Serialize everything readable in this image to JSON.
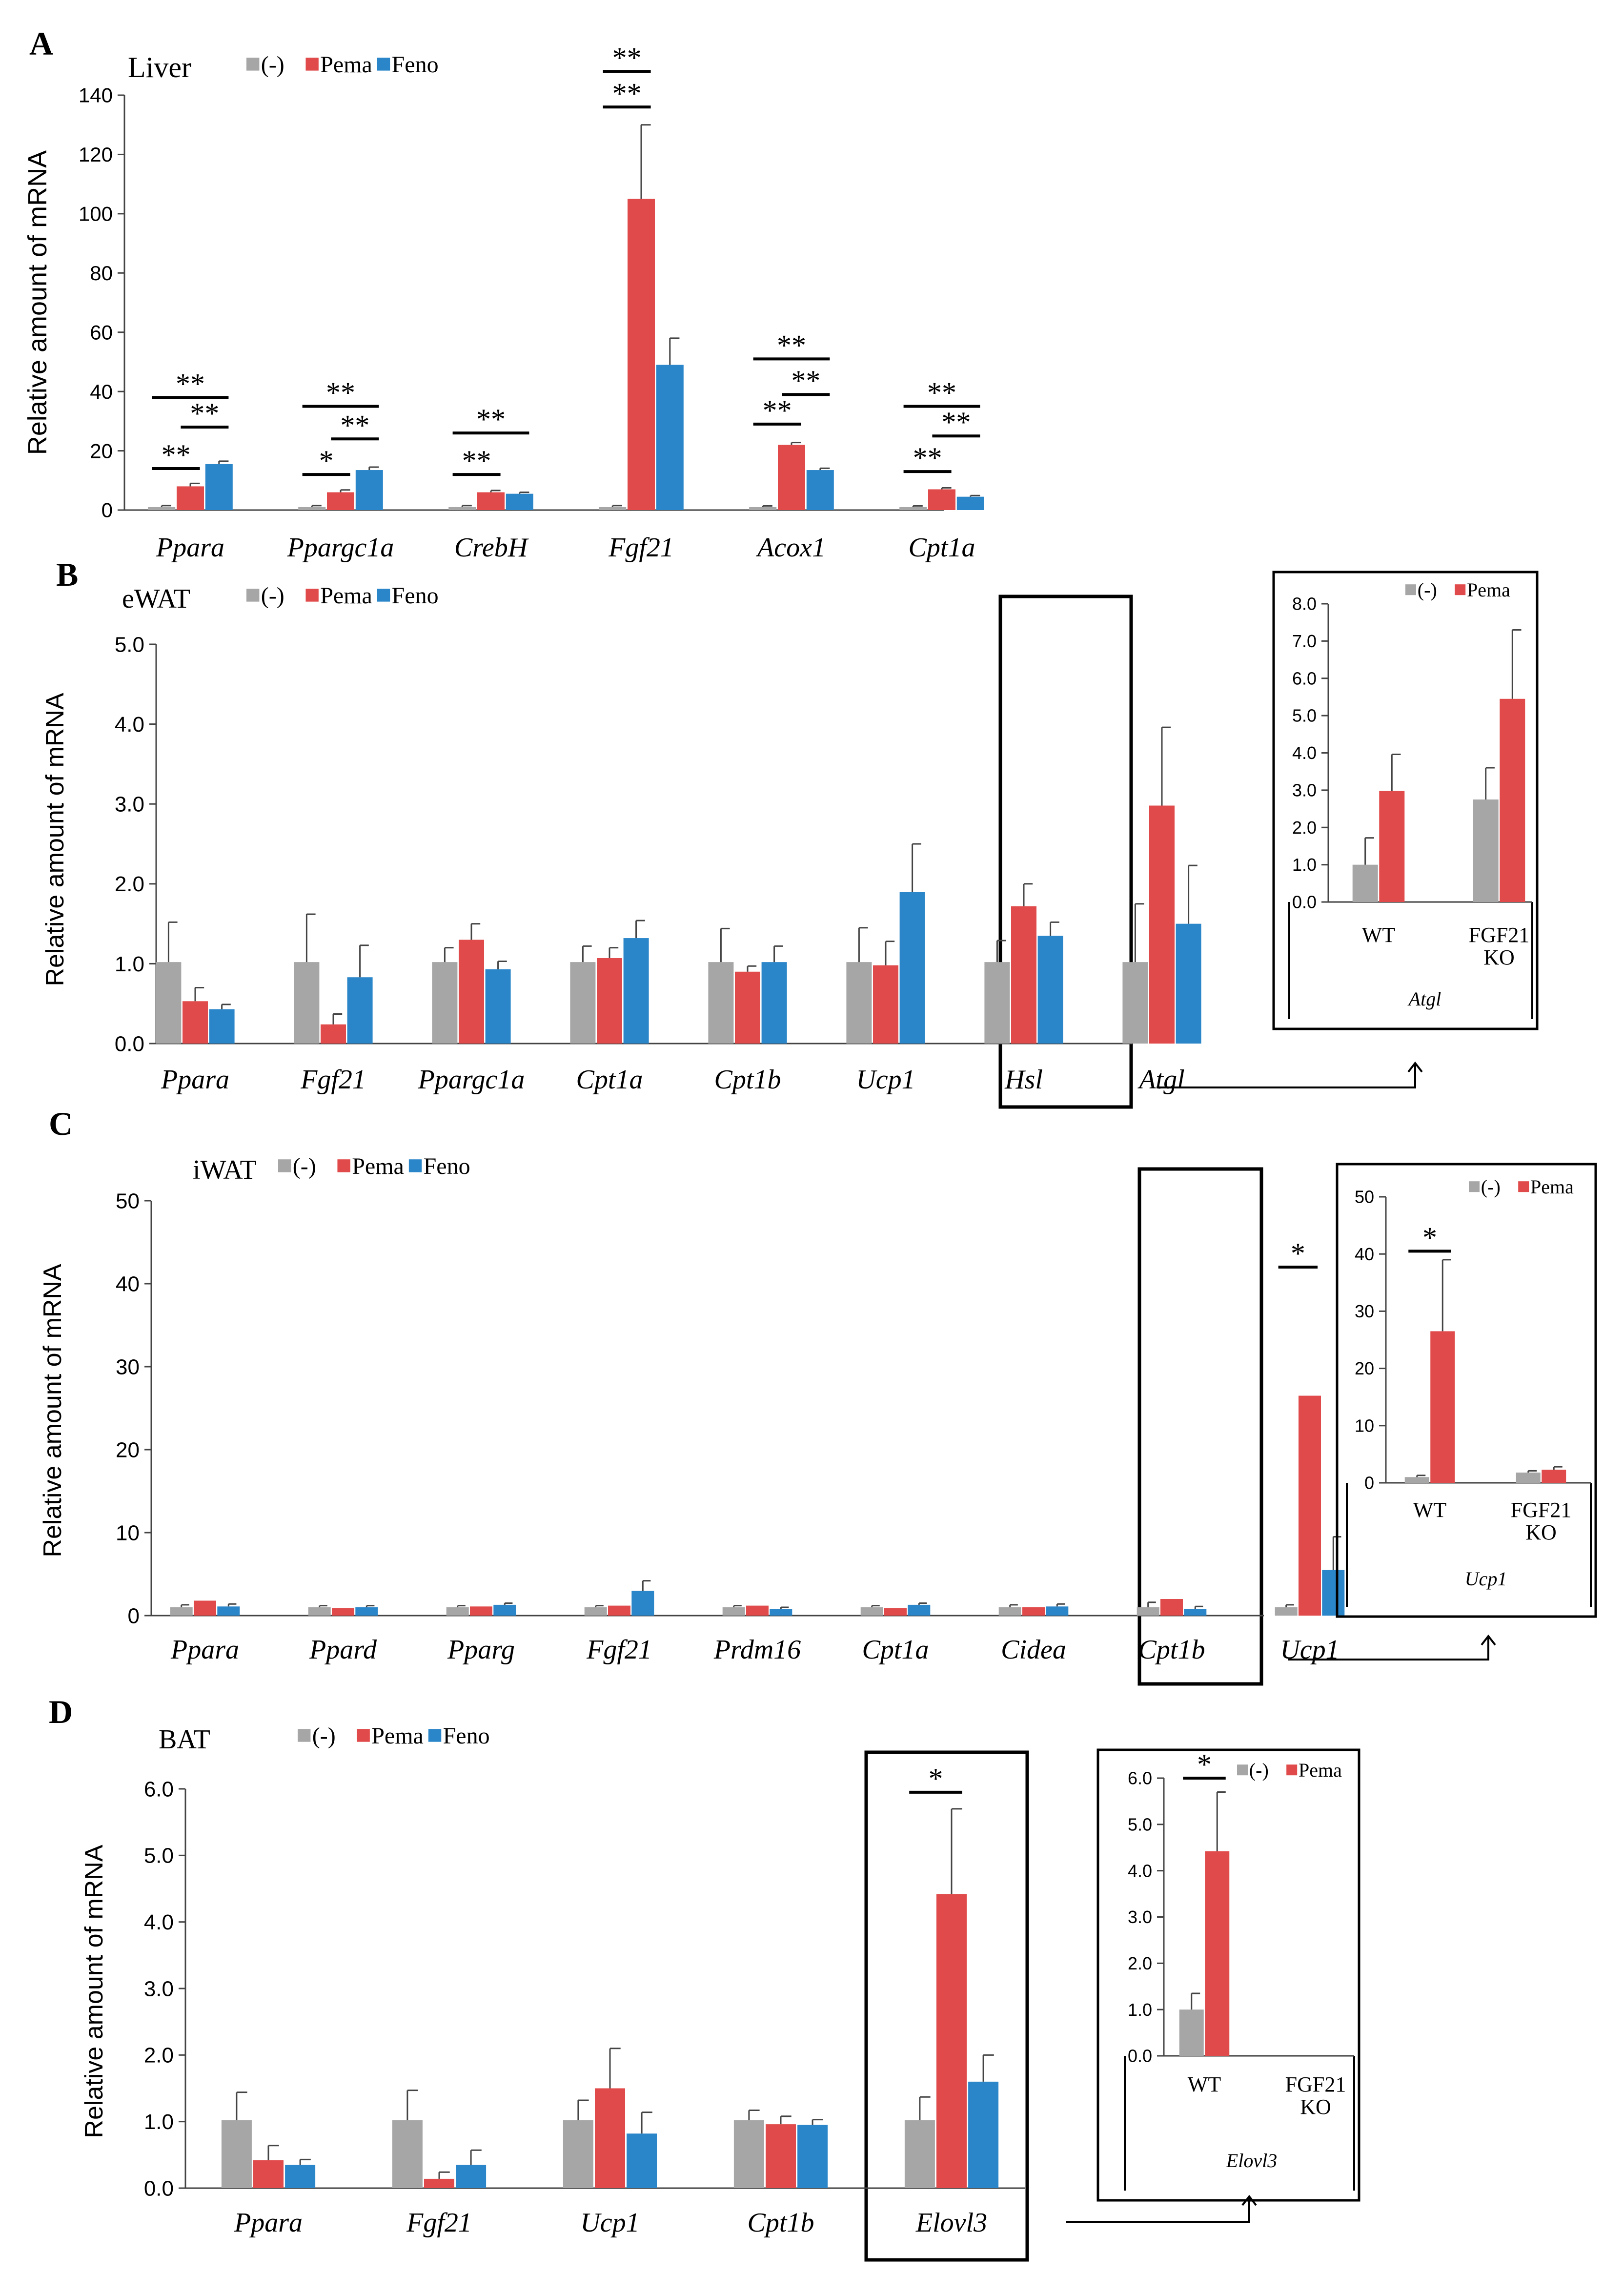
{
  "chart_data": [
    {
      "id": "A",
      "panel_label": "A",
      "type": "bar",
      "title": "Liver",
      "ylabel": "Relative amount of mRNA",
      "ylim": [
        0,
        140
      ],
      "yticks": [
        "0",
        "20",
        "40",
        "60",
        "80",
        "100",
        "120",
        "140"
      ],
      "tick_values": [
        0,
        20,
        40,
        60,
        80,
        100,
        120,
        140
      ],
      "categories": [
        "Ppara",
        "Ppargc1a",
        "CrebH",
        "Fgf21",
        "Acox1",
        "Cpt1a"
      ],
      "series": [
        {
          "name": "(-)",
          "color": "#a6a6a6",
          "values": [
            1,
            1,
            1,
            1,
            1,
            1
          ],
          "errors": [
            0.5,
            0.5,
            0.5,
            0.5,
            0.4,
            0.4
          ]
        },
        {
          "name": "Pema",
          "color": "#e04a4a",
          "values": [
            8,
            6,
            6,
            105,
            22,
            7
          ],
          "errors": [
            1,
            0.8,
            0.6,
            25,
            0.8,
            0.5
          ]
        },
        {
          "name": "Feno",
          "color": "#2b86c9",
          "values": [
            15.5,
            13.5,
            5.5,
            49,
            13.5,
            4.5
          ],
          "errors": [
            1,
            1,
            0.5,
            9,
            0.6,
            0.4
          ]
        }
      ],
      "significance": [
        {
          "group": 0,
          "from": 0,
          "to": 1,
          "level": 14,
          "text": "**"
        },
        {
          "group": 0,
          "from": 1,
          "to": 2,
          "level": 28,
          "text": "**"
        },
        {
          "group": 0,
          "from": 0,
          "to": 2,
          "level": 38,
          "text": "**"
        },
        {
          "group": 1,
          "from": 0,
          "to": 1,
          "level": 12,
          "text": "*"
        },
        {
          "group": 1,
          "from": 1,
          "to": 2,
          "level": 24,
          "text": "**"
        },
        {
          "group": 1,
          "from": 0,
          "to": 2,
          "level": 35,
          "text": "**"
        },
        {
          "group": 2,
          "from": 0,
          "to": 1,
          "level": 12,
          "text": "**"
        },
        {
          "group": 2,
          "from": 0,
          "to": 2,
          "level": 26,
          "text": "**"
        },
        {
          "group": 3,
          "from": 0,
          "to": 1,
          "level": 136,
          "text": "**"
        },
        {
          "group": 3,
          "from": 0,
          "to": 1,
          "level": 148,
          "text": "**"
        },
        {
          "group": 4,
          "from": 0,
          "to": 1,
          "level": 29,
          "text": "**"
        },
        {
          "group": 4,
          "from": 1,
          "to": 2,
          "level": 39,
          "text": "**"
        },
        {
          "group": 4,
          "from": 0,
          "to": 2,
          "level": 51,
          "text": "**"
        },
        {
          "group": 5,
          "from": 0,
          "to": 1,
          "level": 13,
          "text": "**"
        },
        {
          "group": 5,
          "from": 1,
          "to": 2,
          "level": 25,
          "text": "**"
        },
        {
          "group": 5,
          "from": 0,
          "to": 2,
          "level": 35,
          "text": "**"
        }
      ]
    },
    {
      "id": "B",
      "panel_label": "B",
      "type": "bar",
      "title": "eWAT",
      "ylabel": "Relative amount of mRNA",
      "ylim": [
        0,
        5
      ],
      "yticks": [
        "0.0",
        "1.0",
        "2.0",
        "3.0",
        "4.0",
        "5.0"
      ],
      "tick_values": [
        0,
        1,
        2,
        3,
        4,
        5
      ],
      "categories": [
        "Ppara",
        "Fgf21",
        "Ppargc1a",
        "Cpt1a",
        "Cpt1b",
        "Ucp1",
        "Hsl",
        "Atgl"
      ],
      "highlight": 7,
      "series": [
        {
          "name": "(-)",
          "color": "#a6a6a6",
          "values": [
            1.02,
            1.02,
            1.02,
            1.02,
            1.02,
            1.02,
            1.02,
            1.02
          ],
          "errors": [
            0.5,
            0.6,
            0.18,
            0.2,
            0.42,
            0.43,
            0.27,
            0.73
          ]
        },
        {
          "name": "Pema",
          "color": "#e04a4a",
          "values": [
            0.53,
            0.24,
            1.3,
            1.07,
            0.9,
            0.98,
            1.72,
            2.98
          ],
          "errors": [
            0.17,
            0.13,
            0.2,
            0.13,
            0.07,
            0.3,
            0.28,
            0.98
          ]
        },
        {
          "name": "Feno",
          "color": "#2b86c9",
          "values": [
            0.43,
            0.83,
            0.93,
            1.32,
            1.02,
            1.9,
            1.35,
            1.5
          ],
          "errors": [
            0.06,
            0.4,
            0.1,
            0.22,
            0.2,
            0.6,
            0.17,
            0.73
          ]
        }
      ],
      "significance": []
    },
    {
      "id": "B-inset",
      "type": "bar",
      "title": "Atgl",
      "ylim": [
        0,
        8
      ],
      "yticks": [
        "0.0",
        "1.0",
        "2.0",
        "3.0",
        "4.0",
        "5.0",
        "6.0",
        "7.0",
        "8.0"
      ],
      "tick_values": [
        0,
        1,
        2,
        3,
        4,
        5,
        6,
        7,
        8
      ],
      "categories": [
        "WT",
        "FGF21 KO"
      ],
      "series": [
        {
          "name": "(-)",
          "color": "#a6a6a6",
          "values": [
            1.0,
            2.75
          ],
          "errors": [
            0.72,
            0.85
          ]
        },
        {
          "name": "Pema",
          "color": "#e04a4a",
          "values": [
            2.98,
            5.45
          ],
          "errors": [
            0.98,
            1.85
          ]
        }
      ],
      "significance": []
    },
    {
      "id": "C",
      "panel_label": "C",
      "type": "bar",
      "title": "iWAT",
      "ylabel": "Relative amount of mRNA",
      "ylim": [
        0,
        50
      ],
      "yticks": [
        "0",
        "10",
        "20",
        "30",
        "40",
        "50"
      ],
      "tick_values": [
        0,
        10,
        20,
        30,
        40,
        50
      ],
      "categories": [
        "Ppara",
        "Ppard",
        "Pparg",
        "Fgf21",
        "Prdm16",
        "Cpt1a",
        "Cidea",
        "Cpt1b",
        "Ucp1"
      ],
      "highlight": 8,
      "series": [
        {
          "name": "(-)",
          "color": "#a6a6a6",
          "values": [
            1,
            1,
            1,
            1,
            1,
            1,
            1,
            1,
            1
          ],
          "errors": [
            0.3,
            0.2,
            0.2,
            0.2,
            0.2,
            0.2,
            0.3,
            0.6,
            0.3
          ]
        },
        {
          "name": "Pema",
          "color": "#e04a4a",
          "values": [
            1.8,
            0.9,
            1.1,
            1.2,
            1.2,
            0.9,
            1.0,
            2.0,
            26.5
          ]
        },
        {
          "name": "Feno",
          "color": "#2b86c9",
          "values": [
            1.1,
            1.0,
            1.3,
            3.0,
            0.8,
            1.3,
            1.1,
            0.8,
            5.5
          ],
          "errors": [
            0.3,
            0.2,
            0.2,
            1.2,
            0.2,
            0.2,
            0.3,
            0.3,
            4.0
          ]
        }
      ],
      "significance": [
        {
          "group": 8,
          "from": 0,
          "to": 1,
          "level": 42,
          "text": "*"
        }
      ]
    },
    {
      "id": "C-inset",
      "type": "bar",
      "title": "Ucp1",
      "ylim": [
        0,
        50
      ],
      "yticks": [
        "0",
        "10",
        "20",
        "30",
        "40",
        "50"
      ],
      "tick_values": [
        0,
        10,
        20,
        30,
        40,
        50
      ],
      "categories": [
        "WT",
        "FGF21 KO"
      ],
      "series": [
        {
          "name": "(-)",
          "color": "#a6a6a6",
          "values": [
            1.0,
            1.8
          ],
          "errors": [
            0.3,
            0.3
          ]
        },
        {
          "name": "Pema",
          "color": "#e04a4a",
          "values": [
            26.5,
            2.3
          ],
          "errors": [
            12.5,
            0.5
          ]
        }
      ],
      "significance": [
        {
          "group": 0,
          "from": 0,
          "to": 1,
          "level": 40.5,
          "text": "*"
        }
      ]
    },
    {
      "id": "D",
      "panel_label": "D",
      "type": "bar",
      "title": "BAT",
      "ylabel": "Relative amount of mRNA",
      "ylim": [
        0,
        6
      ],
      "yticks": [
        "0.0",
        "1.0",
        "2.0",
        "3.0",
        "4.0",
        "5.0",
        "6.0"
      ],
      "tick_values": [
        0,
        1,
        2,
        3,
        4,
        5,
        6
      ],
      "categories": [
        "Ppara",
        "Fgf21",
        "Ucp1",
        "Cpt1b",
        "Elovl3"
      ],
      "highlight": 4,
      "series": [
        {
          "name": "(-)",
          "color": "#a6a6a6",
          "values": [
            1.02,
            1.02,
            1.02,
            1.02,
            1.02
          ],
          "errors": [
            0.42,
            0.45,
            0.3,
            0.15,
            0.35
          ]
        },
        {
          "name": "Pema",
          "color": "#e04a4a",
          "values": [
            0.42,
            0.14,
            1.5,
            0.96,
            4.42
          ],
          "errors": [
            0.22,
            0.1,
            0.6,
            0.12,
            1.28
          ]
        },
        {
          "name": "Feno",
          "color": "#2b86c9",
          "values": [
            0.35,
            0.35,
            0.82,
            0.95,
            1.6
          ],
          "errors": [
            0.08,
            0.22,
            0.32,
            0.08,
            0.4
          ]
        }
      ],
      "significance": [
        {
          "group": 4,
          "from": 0,
          "to": 1,
          "level": 5.95,
          "text": "*"
        }
      ]
    },
    {
      "id": "D-inset",
      "type": "bar",
      "title": "Elovl3",
      "ylim": [
        0,
        6
      ],
      "yticks": [
        "0.0",
        "1.0",
        "2.0",
        "3.0",
        "4.0",
        "5.0",
        "6.0"
      ],
      "tick_values": [
        0,
        1,
        2,
        3,
        4,
        5,
        6
      ],
      "categories": [
        "WT",
        "FGF21 KO"
      ],
      "series": [
        {
          "name": "(-)",
          "color": "#a6a6a6",
          "values": [
            1.0,
            0
          ],
          "errors": [
            0.35,
            0
          ]
        },
        {
          "name": "Pema",
          "color": "#e04a4a",
          "values": [
            4.42,
            0
          ],
          "errors": [
            1.28,
            0
          ]
        }
      ],
      "significance": [
        {
          "group": 0,
          "from": 0,
          "to": 1,
          "level": 6.0,
          "text": "*"
        }
      ]
    }
  ]
}
